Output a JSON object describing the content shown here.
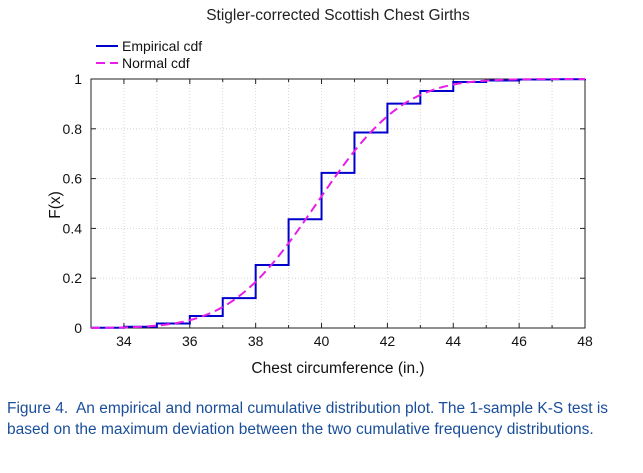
{
  "chart_data": {
    "type": "line",
    "title": "Stigler-corrected Scottish Chest Girths",
    "xlabel": "Chest circumference (in.)",
    "ylabel": "F(x)",
    "xlim": [
      33,
      48
    ],
    "ylim": [
      0,
      1
    ],
    "xticks": [
      34,
      36,
      38,
      40,
      42,
      44,
      46,
      48
    ],
    "yticks": [
      0,
      0.2,
      0.4,
      0.6,
      0.8,
      1
    ],
    "ytick_labels": [
      "0",
      "0.2",
      "0.4",
      "0.6",
      "0.8",
      "1"
    ],
    "grid": true,
    "legend_position": "top-left-outside",
    "series": [
      {
        "name": "Empirical cdf",
        "style": "step",
        "color": "#0000cc",
        "x": [
          33,
          34,
          35,
          36,
          37,
          38,
          39,
          40,
          41,
          42,
          43,
          44,
          45,
          46,
          47,
          48
        ],
        "values": [
          0.001,
          0.005,
          0.018,
          0.048,
          0.12,
          0.253,
          0.437,
          0.623,
          0.785,
          0.901,
          0.952,
          0.988,
          0.994,
          0.998,
          0.999,
          1.0
        ]
      },
      {
        "name": "Normal cdf",
        "style": "dashed",
        "color": "#e61ee6",
        "mean": 39.85,
        "sd": 2.07
      }
    ]
  },
  "caption": {
    "label": "Figure 4.",
    "text": "An empirical and normal cumulative distribution plot. The 1-sample K-S test is based on the maximum deviation between the two cumulative frequency distributions."
  }
}
